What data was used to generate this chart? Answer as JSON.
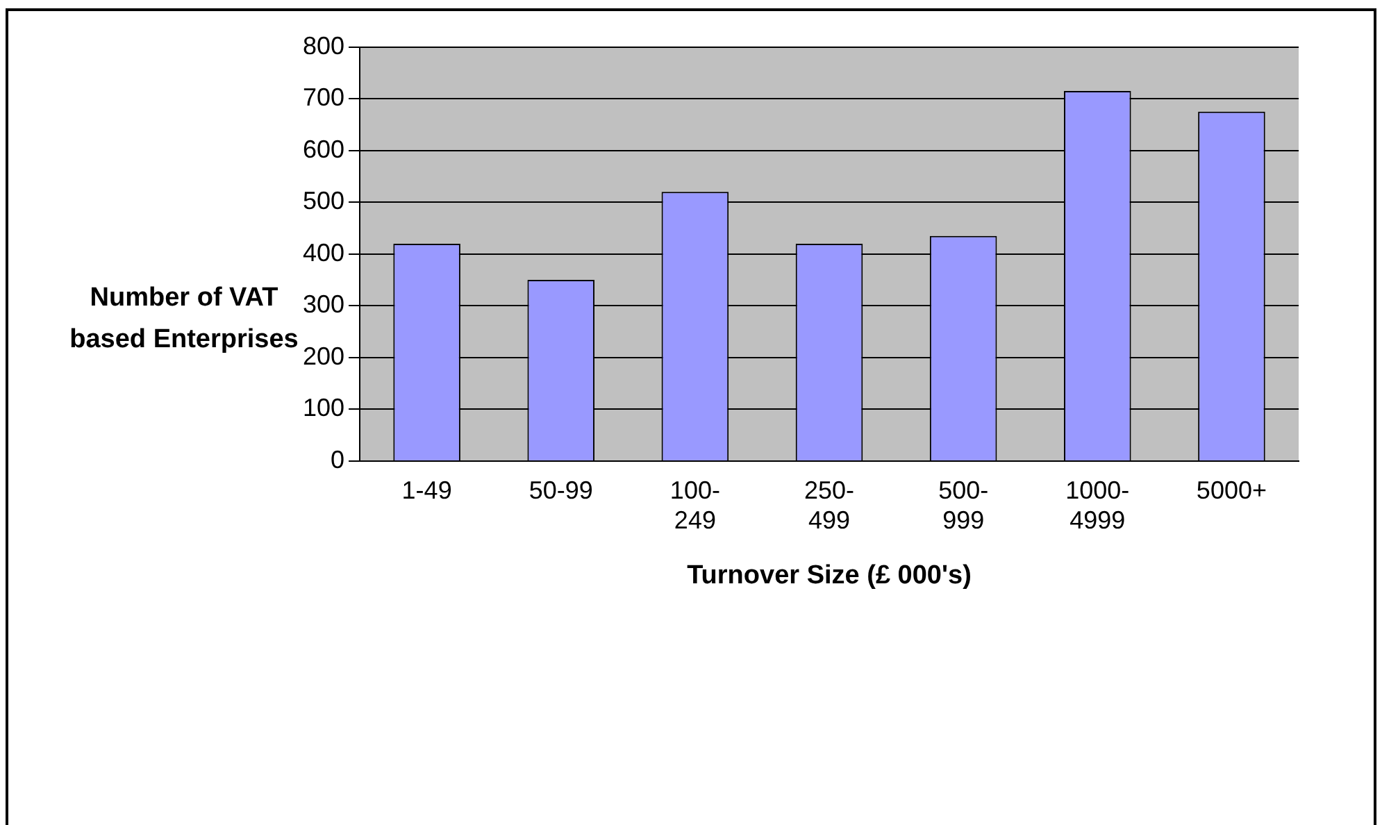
{
  "chart_data": {
    "type": "bar",
    "xlabel": "Turnover Size (£ 000's)",
    "ylabel": "Number of VAT based Enterprises",
    "categories": [
      "1-49",
      "50-99",
      "100-249",
      "250-499",
      "500-999",
      "1000-4999",
      "5000+"
    ],
    "values": [
      420,
      350,
      520,
      420,
      435,
      715,
      675
    ],
    "color": "#9999ff",
    "ylim": [
      0,
      800
    ],
    "yticks": [
      0,
      100,
      200,
      300,
      400,
      500,
      600,
      700,
      800
    ],
    "grid": "y",
    "legend": false
  }
}
